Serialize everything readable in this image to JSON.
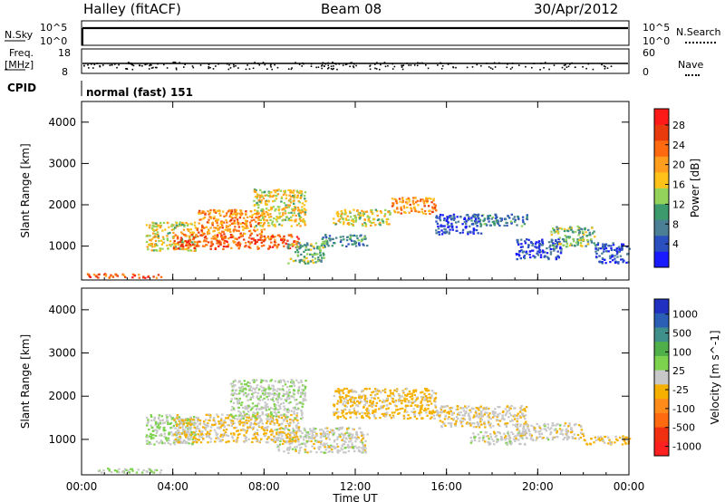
{
  "header": {
    "station": "Halley (fitACF)",
    "beam": "Beam 08",
    "date": "30/Apr/2012"
  },
  "panels": {
    "nsky_label": "N.Sky",
    "nsky_ticks": [
      "10^5",
      "10^0"
    ],
    "nsearch_label": "N.Search",
    "nsearch_ticks": [
      "10^5",
      "10^0"
    ],
    "freq_label": "Freq.",
    "freq_unit": "[MHz]",
    "freq_ticks": [
      "18",
      "8"
    ],
    "nave_label": "Nave",
    "nave_ticks": [
      "60",
      "0"
    ],
    "cpid_label": "CPID",
    "cpid_value": "normal (fast) 151"
  },
  "colors": {
    "power": [
      "#1a1aff",
      "#2a4fbf",
      "#4b7f96",
      "#3c9a6d",
      "#93d35c",
      "#ffc21a",
      "#ff9d1f",
      "#ff6a10",
      "#e83a0d",
      "#ff1a1a"
    ],
    "velocity": [
      "#2030c0",
      "#2a5fb5",
      "#3f8f8a",
      "#4fb04a",
      "#7ed34e",
      "#c8c8c8",
      "#f6b000",
      "#ff8c1a",
      "#ff6a10",
      "#f03010",
      "#ff2020"
    ]
  },
  "chart_data": [
    {
      "type": "heatmap",
      "title": "",
      "xlabel": "",
      "ylabel": "Slant Range [km]",
      "xlim": [
        0,
        24
      ],
      "ylim": [
        180,
        4500
      ],
      "x_ticks": [
        "00:00",
        "04:00",
        "08:00",
        "12:00",
        "16:00",
        "20:00",
        "00:00"
      ],
      "y_ticks": [
        "1000",
        "2000",
        "3000",
        "4000"
      ],
      "colorbar": {
        "label": "Power [dB]",
        "ticks": [
          "4",
          "8",
          "12",
          "16",
          "20",
          "24",
          "28"
        ],
        "range": [
          0,
          30
        ]
      },
      "echo_regions": [
        {
          "t": [
            0.2,
            3.5
          ],
          "range": [
            250,
            350
          ],
          "value": 24
        },
        {
          "t": [
            2.8,
            5.0
          ],
          "range": [
            900,
            1600
          ],
          "value": 16
        },
        {
          "t": [
            4.0,
            9.5
          ],
          "range": [
            950,
            1300
          ],
          "value": 24
        },
        {
          "t": [
            5.0,
            8.0
          ],
          "range": [
            1300,
            1900
          ],
          "value": 20
        },
        {
          "t": [
            7.5,
            9.8
          ],
          "range": [
            1500,
            2400
          ],
          "value": 16
        },
        {
          "t": [
            9.0,
            10.6
          ],
          "range": [
            600,
            1100
          ],
          "value": 12
        },
        {
          "t": [
            10.5,
            12.5
          ],
          "range": [
            1000,
            1300
          ],
          "value": 8
        },
        {
          "t": [
            11.0,
            13.5
          ],
          "range": [
            1500,
            1900
          ],
          "value": 16
        },
        {
          "t": [
            13.5,
            15.5
          ],
          "range": [
            1800,
            2200
          ],
          "value": 20
        },
        {
          "t": [
            15.5,
            17.5
          ],
          "range": [
            1300,
            1800
          ],
          "value": 4
        },
        {
          "t": [
            17.0,
            19.5
          ],
          "range": [
            1500,
            1800
          ],
          "value": 8
        },
        {
          "t": [
            19.0,
            21.0
          ],
          "range": [
            700,
            1200
          ],
          "value": 4
        },
        {
          "t": [
            20.5,
            22.5
          ],
          "range": [
            1000,
            1500
          ],
          "value": 12
        },
        {
          "t": [
            22.5,
            24.0
          ],
          "range": [
            600,
            1100
          ],
          "value": 4
        }
      ]
    },
    {
      "type": "heatmap",
      "title": "",
      "xlabel": "Time UT",
      "ylabel": "Slant Range [km]",
      "xlim": [
        0,
        24
      ],
      "ylim": [
        180,
        4500
      ],
      "x_ticks": [
        "00:00",
        "04:00",
        "08:00",
        "12:00",
        "16:00",
        "20:00",
        "00:00"
      ],
      "y_ticks": [
        "1000",
        "2000",
        "3000",
        "4000"
      ],
      "colorbar": {
        "label": "Velocity [m s^-1]",
        "ticks": [
          "1000",
          "500",
          "100",
          "25",
          "-25",
          "-100",
          "-500",
          "-1000"
        ],
        "range": [
          -1000,
          1000
        ]
      },
      "echo_regions": [
        {
          "t": [
            0.2,
            3.5
          ],
          "range": [
            250,
            350
          ],
          "value": 100
        },
        {
          "t": [
            2.8,
            5.0
          ],
          "range": [
            900,
            1600
          ],
          "value": 80
        },
        {
          "t": [
            4.0,
            9.5
          ],
          "range": [
            950,
            1600
          ],
          "value": -100
        },
        {
          "t": [
            6.5,
            9.8
          ],
          "range": [
            1500,
            2400
          ],
          "value": 60
        },
        {
          "t": [
            8.5,
            12.5
          ],
          "range": [
            700,
            1300
          ],
          "value": 0
        },
        {
          "t": [
            11.0,
            15.5
          ],
          "range": [
            1500,
            2200
          ],
          "value": -150
        },
        {
          "t": [
            15.5,
            19.5
          ],
          "range": [
            1300,
            1800
          ],
          "value": -50
        },
        {
          "t": [
            17.0,
            19.5
          ],
          "range": [
            900,
            1200
          ],
          "value": 0
        },
        {
          "t": [
            19.0,
            22.0
          ],
          "range": [
            1000,
            1400
          ],
          "value": -20
        },
        {
          "t": [
            22.0,
            24.0
          ],
          "range": [
            900,
            1100
          ],
          "value": -150
        }
      ]
    }
  ]
}
